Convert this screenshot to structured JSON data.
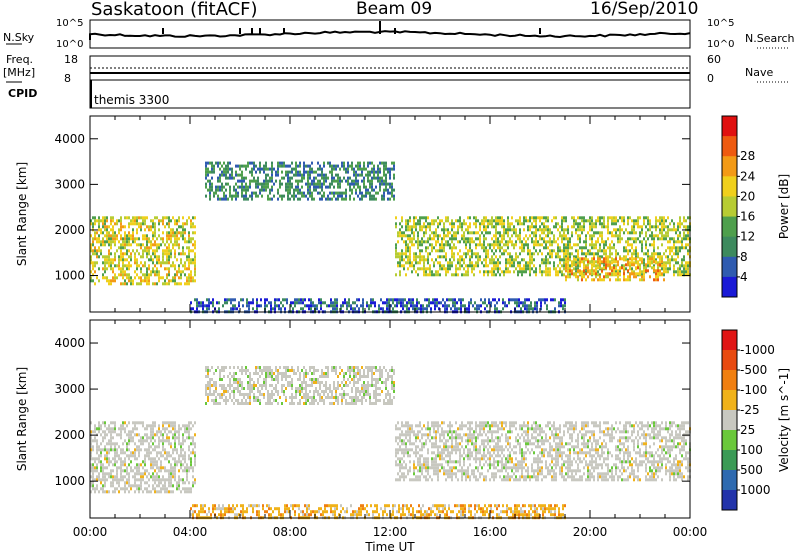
{
  "header": {
    "site": "Saskatoon (fitACF)",
    "beam": "Beam 09",
    "date": "16/Sep/2010"
  },
  "status_panels": {
    "nsky_label": "N.Sky",
    "nsearch_label": "N.Search",
    "noise_ticks_left": [
      "10^5",
      "10^0"
    ],
    "noise_ticks_right": [
      "10^5",
      "10^0"
    ],
    "freq_label": "Freq.",
    "freq_unit": "[MHz]",
    "freq_ticks": [
      "18",
      "8"
    ],
    "nave_label": "Nave",
    "nave_ticks": [
      "60",
      "0"
    ],
    "cpid_label": "CPID",
    "cpid_value": "themis 3300"
  },
  "chart_data": [
    {
      "type": "heatmap",
      "parameter": "Power",
      "ylabel": "Slant Range [km]",
      "ylim": [
        200,
        4500
      ],
      "yticks": [
        1000,
        2000,
        3000,
        4000
      ],
      "xlim": [
        0,
        24
      ],
      "colorbar_label": "Power [dB]",
      "colorbar_ticks": [
        "4",
        "8",
        "12",
        "16",
        "20",
        "24",
        "28"
      ],
      "colors": [
        "#1a1ad6",
        "#2f5bb0",
        "#3d8a5e",
        "#4e9f4c",
        "#b7cc33",
        "#f0d01c",
        "#f39a16",
        "#ee5a10",
        "#e01010"
      ],
      "echo_regions": [
        {
          "t": [
            0.0,
            4.2
          ],
          "r": [
            800,
            2300
          ],
          "level": 22
        },
        {
          "t": [
            4.6,
            12.2
          ],
          "r": [
            2700,
            3500
          ],
          "level": 12
        },
        {
          "t": [
            12.2,
            24.0
          ],
          "r": [
            1000,
            2300
          ],
          "level": 20
        },
        {
          "t": [
            19.0,
            23.0
          ],
          "r": [
            900,
            1400
          ],
          "level": 26
        },
        {
          "t": [
            4.0,
            19.0
          ],
          "r": [
            200,
            500
          ],
          "level": 8
        }
      ]
    },
    {
      "type": "heatmap",
      "parameter": "Velocity",
      "ylabel": "Slant Range [km]",
      "xlabel": "Time UT",
      "ylim": [
        200,
        4500
      ],
      "yticks": [
        1000,
        2000,
        3000,
        4000
      ],
      "xlim": [
        0,
        24
      ],
      "xticks": [
        "00:00",
        "04:00",
        "08:00",
        "12:00",
        "16:00",
        "20:00",
        "00:00"
      ],
      "colorbar_label": "Velocity [m s^-1]",
      "colorbar_ticks": [
        "1000",
        "500",
        "100",
        "25",
        "-25",
        "-100",
        "-500",
        "-1000"
      ],
      "colors": [
        "#2233aa",
        "#2e6ab0",
        "#3a9a55",
        "#6ac83a",
        "#c8c8c0",
        "#f0b21a",
        "#f07f10",
        "#e84a10",
        "#e01515"
      ],
      "echo_regions": [
        {
          "t": [
            0.0,
            4.2
          ],
          "r": [
            800,
            2300
          ],
          "level": "ground scatter"
        },
        {
          "t": [
            4.6,
            12.2
          ],
          "r": [
            2700,
            3500
          ],
          "level": "ground scatter"
        },
        {
          "t": [
            12.2,
            24.0
          ],
          "r": [
            1000,
            2300
          ],
          "level": "ground scatter"
        },
        {
          "t": [
            4.0,
            19.0
          ],
          "r": [
            200,
            500
          ],
          "level": "-100"
        }
      ]
    }
  ]
}
